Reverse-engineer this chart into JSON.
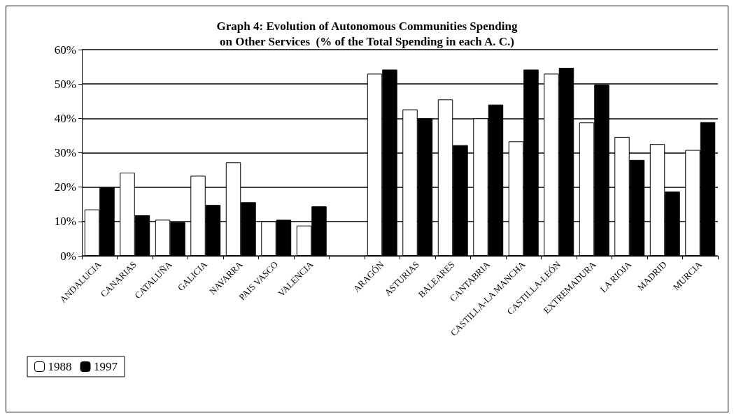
{
  "chart_data": {
    "type": "bar",
    "title": "Graph 4: Evolution of Autonomous Communities Spending\non Other Services  (% of the Total Spending in each A. C.)",
    "categories": [
      "ANDALUCIA",
      "CANARIAS",
      "CATALUÑA",
      "GALICIA",
      "NAVARRA",
      "PAIS VASCO",
      "VALENCIA",
      null,
      "ARAGÓN",
      "ASTURIAS",
      "BALEARES",
      "CANTABRIA",
      "CASTILLA-LA MANCHA",
      "CASTILLA-LEÓN",
      "EXTREMADURA",
      "LA RIOJA",
      "MADRID",
      "MURCIA"
    ],
    "series": [
      {
        "name": "1988",
        "color": "#ffffff",
        "values": [
          13.5,
          24.2,
          10.5,
          23.3,
          27.2,
          10,
          8.8,
          null,
          53,
          42.6,
          45.5,
          40,
          33.3,
          53,
          38.8,
          34.6,
          32.5,
          30.8
        ]
      },
      {
        "name": "1997",
        "color": "#000000",
        "values": [
          20,
          11.8,
          9.8,
          14.8,
          15.6,
          10.5,
          14.4,
          null,
          54.2,
          40,
          32.2,
          44,
          54.2,
          54.7,
          49.8,
          27.9,
          18.7,
          38.9
        ]
      }
    ],
    "ylim": [
      0,
      60
    ],
    "yticks": [
      {
        "value": 0,
        "label": "0%"
      },
      {
        "value": 10,
        "label": "10%"
      },
      {
        "value": 20,
        "label": "20%"
      },
      {
        "value": 30,
        "label": "30%"
      },
      {
        "value": 40,
        "label": "40%"
      },
      {
        "value": 50,
        "label": "50%"
      },
      {
        "value": 60,
        "label": "60%"
      }
    ],
    "grid": "y",
    "legend": "bottom left"
  }
}
